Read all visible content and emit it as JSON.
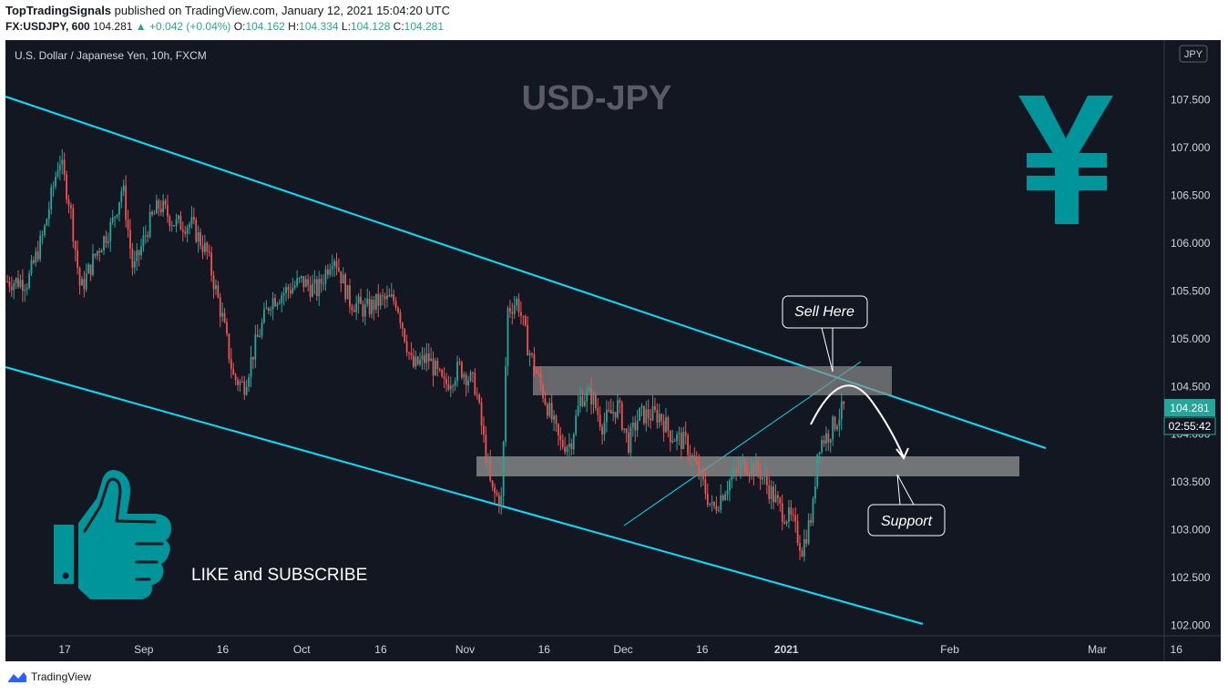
{
  "header": {
    "author": "TopTradingSignals",
    "published_text": "published on TradingView.com, January 12, 2021 15:04:20 UTC",
    "symbol": "FX:USDJPY, 600",
    "last": "104.281",
    "change": "+0.042 (+0.04%)",
    "open_label": "O:",
    "open": "104.162",
    "high_label": "H:",
    "high": "104.334",
    "low_label": "L:",
    "low": "104.128",
    "close_label": "C:",
    "close": "104.281"
  },
  "chart_data": {
    "type": "candlestick",
    "legend": "U.S. Dollar / Japanese Yen, 10h, FXCM",
    "title": "USD-JPY",
    "currency_badge": "JPY",
    "price_tag": "104.281",
    "countdown_tag": "02:55:42",
    "ylim": [
      101.9,
      108.2
    ],
    "y_ticks": [
      "107.500",
      "107.000",
      "106.500",
      "106.000",
      "105.500",
      "105.000",
      "104.500",
      "104.000",
      "103.500",
      "103.000",
      "102.500",
      "102.000"
    ],
    "y_tick_values": [
      107.5,
      107.0,
      106.5,
      106.0,
      105.5,
      105.0,
      104.5,
      104.0,
      103.5,
      103.0,
      102.5,
      102.0
    ],
    "x_ticks": [
      "17",
      "Sep",
      "16",
      "Oct",
      "16",
      "Nov",
      "16",
      "Dec",
      "16",
      "2021",
      "Feb",
      "Mar",
      "16"
    ],
    "x_tick_dates": [
      "2020-08-17",
      "2020-09-01",
      "2020-09-16",
      "2020-10-01",
      "2020-10-16",
      "2020-11-01",
      "2020-11-16",
      "2020-12-01",
      "2020-12-16",
      "2021-01-01",
      "2021-02-01",
      "2021-03-01",
      "2021-03-16"
    ],
    "x_bold_tick": "2021",
    "close_path": [
      {
        "date": "2020-08-10",
        "close": 105.6
      },
      {
        "date": "2020-08-13",
        "close": 106.1
      },
      {
        "date": "2020-08-16",
        "close": 106.9
      },
      {
        "date": "2020-08-18",
        "close": 106.4
      },
      {
        "date": "2020-08-20",
        "close": 105.5
      },
      {
        "date": "2020-08-23",
        "close": 105.9
      },
      {
        "date": "2020-08-26",
        "close": 106.2
      },
      {
        "date": "2020-08-28",
        "close": 106.6
      },
      {
        "date": "2020-08-30",
        "close": 105.7
      },
      {
        "date": "2020-09-02",
        "close": 106.2
      },
      {
        "date": "2020-09-04",
        "close": 106.4
      },
      {
        "date": "2020-09-07",
        "close": 106.2
      },
      {
        "date": "2020-09-10",
        "close": 106.2
      },
      {
        "date": "2020-09-13",
        "close": 105.9
      },
      {
        "date": "2020-09-16",
        "close": 105.2
      },
      {
        "date": "2020-09-18",
        "close": 104.6
      },
      {
        "date": "2020-09-20",
        "close": 104.5
      },
      {
        "date": "2020-09-22",
        "close": 104.9
      },
      {
        "date": "2020-09-25",
        "close": 105.4
      },
      {
        "date": "2020-09-28",
        "close": 105.5
      },
      {
        "date": "2020-10-01",
        "close": 105.6
      },
      {
        "date": "2020-10-04",
        "close": 105.5
      },
      {
        "date": "2020-10-07",
        "close": 105.9
      },
      {
        "date": "2020-10-10",
        "close": 105.4
      },
      {
        "date": "2020-10-13",
        "close": 105.3
      },
      {
        "date": "2020-10-16",
        "close": 105.4
      },
      {
        "date": "2020-10-19",
        "close": 105.4
      },
      {
        "date": "2020-10-22",
        "close": 104.7
      },
      {
        "date": "2020-10-25",
        "close": 104.8
      },
      {
        "date": "2020-10-28",
        "close": 104.5
      },
      {
        "date": "2020-10-31",
        "close": 104.7
      },
      {
        "date": "2020-11-03",
        "close": 104.5
      },
      {
        "date": "2020-11-06",
        "close": 103.4
      },
      {
        "date": "2020-11-08",
        "close": 103.3
      },
      {
        "date": "2020-11-09",
        "close": 105.3
      },
      {
        "date": "2020-11-11",
        "close": 105.4
      },
      {
        "date": "2020-11-13",
        "close": 104.9
      },
      {
        "date": "2020-11-16",
        "close": 104.4
      },
      {
        "date": "2020-11-19",
        "close": 103.9
      },
      {
        "date": "2020-11-21",
        "close": 103.9
      },
      {
        "date": "2020-11-23",
        "close": 104.4
      },
      {
        "date": "2020-11-25",
        "close": 104.4
      },
      {
        "date": "2020-11-27",
        "close": 104.1
      },
      {
        "date": "2020-11-30",
        "close": 104.3
      },
      {
        "date": "2020-12-02",
        "close": 103.9
      },
      {
        "date": "2020-12-04",
        "close": 104.2
      },
      {
        "date": "2020-12-08",
        "close": 104.2
      },
      {
        "date": "2020-12-10",
        "close": 104.0
      },
      {
        "date": "2020-12-13",
        "close": 103.9
      },
      {
        "date": "2020-12-16",
        "close": 103.5
      },
      {
        "date": "2020-12-18",
        "close": 103.2
      },
      {
        "date": "2020-12-21",
        "close": 103.5
      },
      {
        "date": "2020-12-24",
        "close": 103.7
      },
      {
        "date": "2020-12-27",
        "close": 103.6
      },
      {
        "date": "2020-12-29",
        "close": 103.4
      },
      {
        "date": "2020-12-31",
        "close": 103.2
      },
      {
        "date": "2021-01-02",
        "close": 103.1
      },
      {
        "date": "2021-01-04",
        "close": 102.8
      },
      {
        "date": "2021-01-06",
        "close": 103.2
      },
      {
        "date": "2021-01-07",
        "close": 103.9
      },
      {
        "date": "2021-01-09",
        "close": 104.0
      },
      {
        "date": "2021-01-11",
        "close": 104.2
      },
      {
        "date": "2021-01-12",
        "close": 104.281
      }
    ],
    "annotations": {
      "sell_label": "Sell Here",
      "support_label": "Support",
      "cta": "LIKE and SUBSCRIBE",
      "yen_symbol": "¥"
    },
    "colors": {
      "up": "#26a69a",
      "down": "#ef5350",
      "channel": "#00e5ff",
      "zone": "#8c8c8c",
      "yen": "#00959a",
      "title": "#5b5b66"
    }
  },
  "footer": {
    "brand": "TradingView"
  }
}
